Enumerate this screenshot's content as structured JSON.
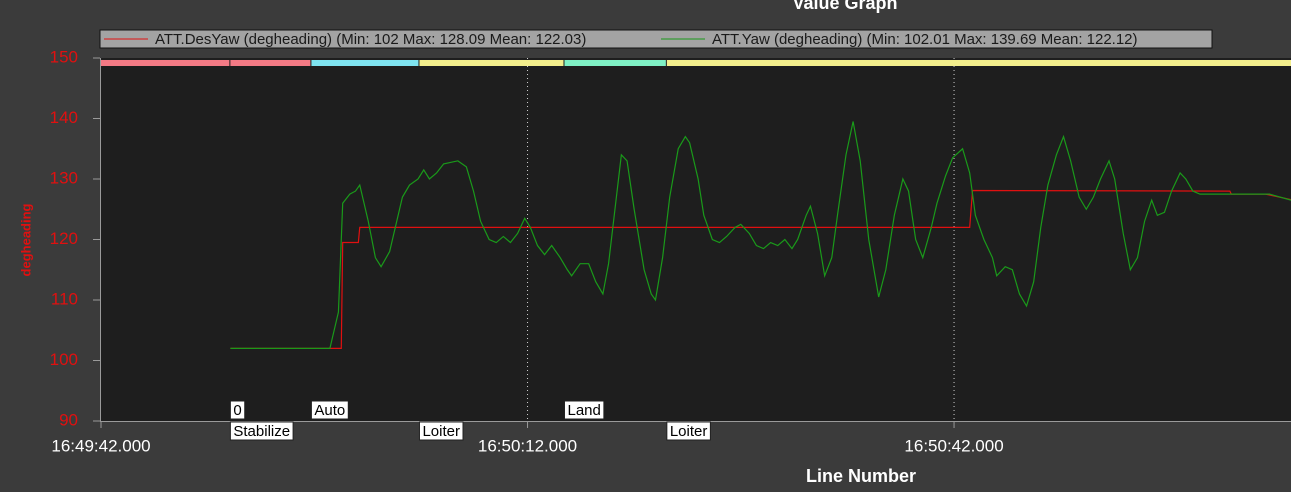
{
  "chart_data": {
    "type": "line",
    "title": "Value Graph",
    "xlabel": "Line Number",
    "ylabel": "degheading",
    "xlim": [
      "16:49:42.000",
      "16:51:05.700"
    ],
    "xticks": [
      "16:49:42.000",
      "16:50:12.000",
      "16:50:42.000"
    ],
    "ylim": [
      90,
      150
    ],
    "yticks": [
      90,
      100,
      110,
      120,
      130,
      140,
      150
    ],
    "grid": "x",
    "series": [
      {
        "name": "ATT.DesYaw (degheading) (Min: 102 Max: 128.09 Mean: 122.03)",
        "color": "#e01010",
        "x": [
          "16:49:51.1",
          "16:49:58.9",
          "16:49:59.0",
          "16:50:00.1",
          "16:50:00.2",
          "16:50:43.1",
          "16:50:43.3",
          "16:51:01.4",
          "16:51:01.5",
          "16:51:03.9",
          "16:51:05.7"
        ],
        "values": [
          102,
          102,
          119.5,
          119.5,
          122,
          122,
          128.1,
          128,
          127.5,
          127.5,
          126.6
        ]
      },
      {
        "name": "ATT.Yaw (degheading) (Min: 102.01 Max: 139.69 Mean: 122.12)",
        "color": "#1a9a1a",
        "x": [
          "16:49:51.1",
          "16:49:58.1",
          "16:49:58.7",
          "16:49:59.0",
          "16:49:59.5",
          "16:49:59.9",
          "16:50:00.2",
          "16:50:00.4",
          "16:50:00.8",
          "16:50:01.3",
          "16:50:01.7",
          "16:50:02.3",
          "16:50:02.8",
          "16:50:03.2",
          "16:50:03.7",
          "16:50:04.3",
          "16:50:04.7",
          "16:50:05.1",
          "16:50:05.6",
          "16:50:06.1",
          "16:50:07.1",
          "16:50:07.7",
          "16:50:08.2",
          "16:50:08.7",
          "16:50:09.3",
          "16:50:09.8",
          "16:50:10.3",
          "16:50:10.8",
          "16:50:11.3",
          "16:50:11.8",
          "16:50:12.2",
          "16:50:12.7",
          "16:50:13.2",
          "16:50:13.7",
          "16:50:14.3",
          "16:50:14.8",
          "16:50:15.1",
          "16:50:15.7",
          "16:50:16.3",
          "16:50:16.8",
          "16:50:17.3",
          "16:50:17.7",
          "16:50:18.2",
          "16:50:18.6",
          "16:50:19.0",
          "16:50:19.5",
          "16:50:20.2",
          "16:50:20.7",
          "16:50:21.0",
          "16:50:21.5",
          "16:50:22.0",
          "16:50:22.6",
          "16:50:23.1",
          "16:50:23.4",
          "16:50:24.0",
          "16:50:24.4",
          "16:50:25.0",
          "16:50:25.5",
          "16:50:26.0",
          "16:50:26.6",
          "16:50:27.0",
          "16:50:27.6",
          "16:50:28.1",
          "16:50:28.6",
          "16:50:29.1",
          "16:50:29.6",
          "16:50:30.1",
          "16:50:30.6",
          "16:50:31.0",
          "16:50:31.6",
          "16:50:31.9",
          "16:50:32.4",
          "16:50:32.9",
          "16:50:33.4",
          "16:50:33.8",
          "16:50:34.4",
          "16:50:34.9",
          "16:50:35.4",
          "16:50:36.0",
          "16:50:36.7",
          "16:50:37.2",
          "16:50:37.8",
          "16:50:38.4",
          "16:50:38.8",
          "16:50:39.3",
          "16:50:39.8",
          "16:50:40.4",
          "16:50:40.8",
          "16:50:41.4",
          "16:50:41.9",
          "16:50:42.6",
          "16:50:43.1",
          "16:50:43.5",
          "16:50:44.1",
          "16:50:44.7",
          "16:50:45.0",
          "16:50:45.6",
          "16:50:46.1",
          "16:50:46.6",
          "16:50:47.1",
          "16:50:47.6",
          "16:50:48.1",
          "16:50:48.6",
          "16:50:49.2",
          "16:50:49.7",
          "16:50:50.2",
          "16:50:50.8",
          "16:50:51.3",
          "16:50:51.8",
          "16:50:52.3",
          "16:50:52.9",
          "16:50:53.3",
          "16:50:53.9",
          "16:50:54.4",
          "16:50:54.9",
          "16:50:55.4",
          "16:50:55.9",
          "16:50:56.3",
          "16:50:56.8",
          "16:50:57.3",
          "16:50:57.9",
          "16:50:58.3",
          "16:50:58.8",
          "16:50:59.3",
          "16:51:01.4",
          "16:51:04.2",
          "16:51:05.7"
        ],
        "values": [
          102,
          102,
          108,
          126,
          127.5,
          128,
          129,
          127,
          123,
          117,
          115.5,
          118,
          123,
          127,
          129,
          130,
          131.5,
          130,
          131,
          132.5,
          133,
          132,
          128,
          123,
          120,
          119.5,
          120.5,
          119.5,
          121,
          123.5,
          122,
          119,
          117.5,
          119,
          117,
          115,
          114,
          116,
          116,
          113,
          111,
          116,
          126,
          134,
          133,
          125,
          115,
          111,
          110,
          117,
          127,
          135,
          137,
          136,
          130,
          124,
          120,
          119.5,
          120.5,
          122,
          122.5,
          121,
          119,
          118.5,
          119.5,
          119,
          120,
          118.5,
          120,
          124,
          125.5,
          121,
          114,
          117,
          124,
          134,
          139.5,
          133,
          120,
          110.5,
          115,
          124,
          130,
          128,
          120,
          117,
          122,
          126,
          130.5,
          133.5,
          135,
          131,
          124,
          120,
          117,
          114,
          115.5,
          115,
          111,
          109,
          113,
          122,
          129,
          134,
          137,
          133,
          127,
          125,
          127,
          130,
          133,
          130,
          121,
          115,
          117,
          123,
          126.5,
          124,
          124.5,
          128,
          131,
          130,
          128,
          127.5,
          127.5,
          127.5,
          126.5
        ]
      }
    ],
    "mode_bands": [
      {
        "start": "16:49:42.0",
        "color": "#f47a85"
      },
      {
        "start": "16:49:51.1",
        "color": "#f47a85"
      },
      {
        "start": "16:49:56.8",
        "color": "#7fe4f0"
      },
      {
        "start": "16:50:04.4",
        "color": "#f3ee8c"
      },
      {
        "start": "16:50:14.6",
        "color": "#7ff0c4"
      },
      {
        "start": "16:50:21.8",
        "color": "#f3ee8c"
      }
    ],
    "mode_labels_top": [
      {
        "time": "16:49:51.1",
        "text": "0"
      },
      {
        "time": "16:49:56.8",
        "text": "Auto"
      },
      {
        "time": "16:50:14.6",
        "text": "Land"
      }
    ],
    "mode_labels_bottom": [
      {
        "time": "16:49:51.1",
        "text": "Stabilize"
      },
      {
        "time": "16:50:04.4",
        "text": "Loiter"
      },
      {
        "time": "16:50:21.8",
        "text": "Loiter"
      }
    ]
  }
}
